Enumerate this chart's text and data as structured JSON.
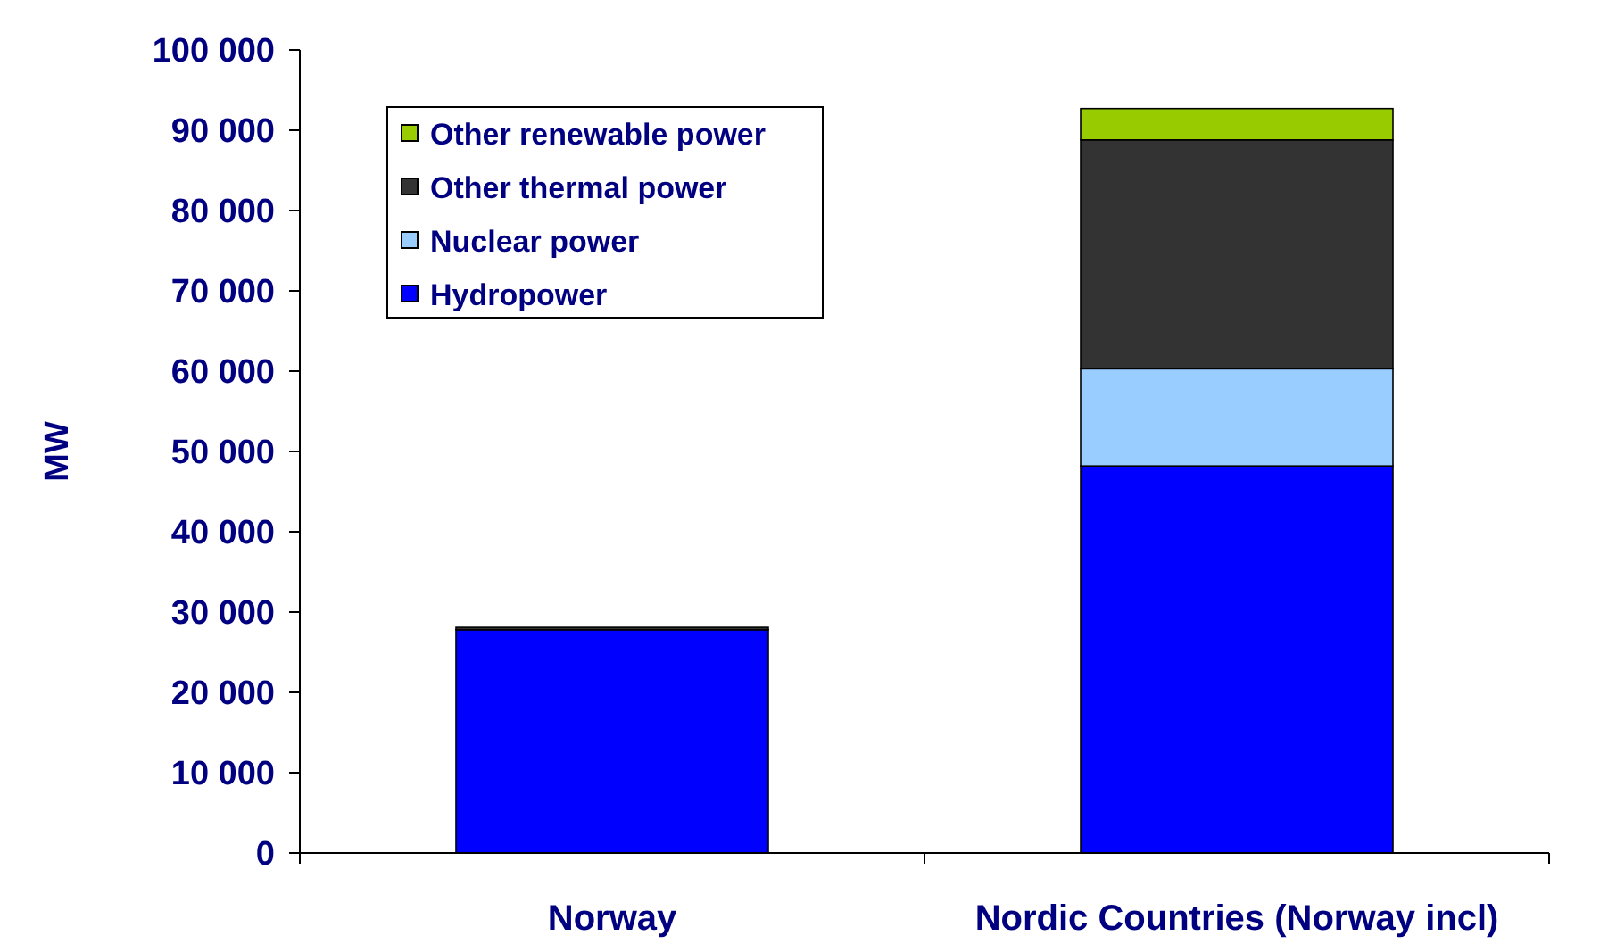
{
  "chart_data": {
    "type": "bar",
    "stacked": true,
    "ylabel": "MW",
    "categories": [
      "Norway",
      "Nordic Countries (Norway incl)"
    ],
    "series": [
      {
        "name": "Hydropower",
        "color": "#0000ff",
        "values": [
          27800,
          48200
        ]
      },
      {
        "name": "Nuclear power",
        "color": "#99ccff",
        "values": [
          0,
          12100
        ]
      },
      {
        "name": "Other thermal power",
        "color": "#333333",
        "values": [
          300,
          28500
        ]
      },
      {
        "name": "Other renewable power",
        "color": "#99cc00",
        "values": [
          0,
          3900
        ]
      }
    ],
    "ylim": [
      0,
      100000
    ],
    "yticks": [
      {
        "value": 0,
        "label": "0"
      },
      {
        "value": 10000,
        "label": "10 000"
      },
      {
        "value": 20000,
        "label": "20 000"
      },
      {
        "value": 30000,
        "label": "30 000"
      },
      {
        "value": 40000,
        "label": "40 000"
      },
      {
        "value": 50000,
        "label": "50 000"
      },
      {
        "value": 60000,
        "label": "60 000"
      },
      {
        "value": 70000,
        "label": "70 000"
      },
      {
        "value": 80000,
        "label": "80 000"
      },
      {
        "value": 90000,
        "label": "90 000"
      },
      {
        "value": 100000,
        "label": "100 000"
      }
    ],
    "grid": false,
    "legend": "top left"
  }
}
